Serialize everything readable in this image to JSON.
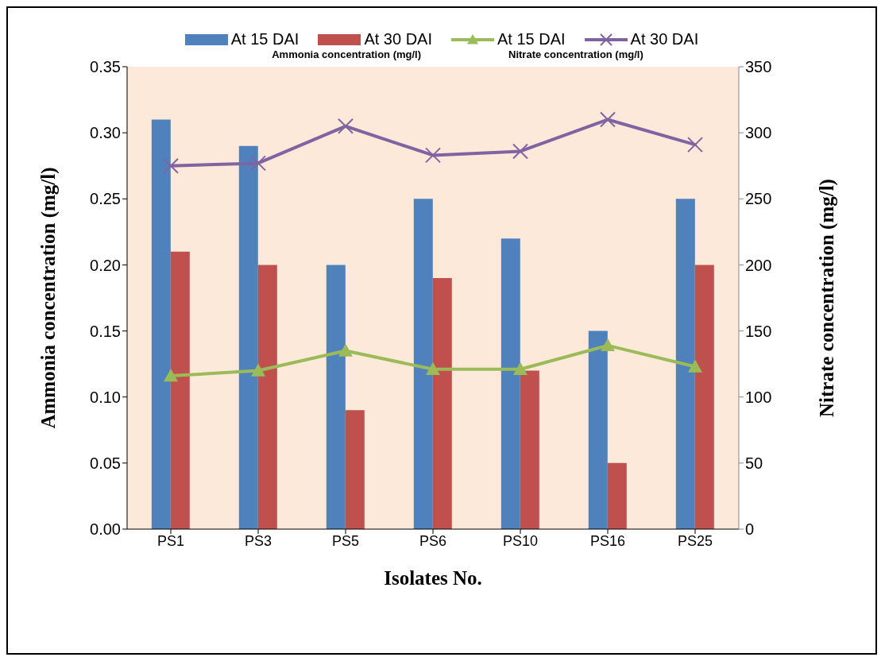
{
  "chart_data": {
    "type": "bar",
    "xlabel": "Isolates No.",
    "ylabel": "Ammonia concentration  (mg/l)",
    "y2label": "Nitrate concentration  (mg/l)",
    "categories": [
      "PS1",
      "PS3",
      "PS5",
      "PS6",
      "PS10",
      "PS16",
      "PS25"
    ],
    "series": [
      {
        "name": "At 15 DAI",
        "color": "#4f81bd",
        "values": [
          0.31,
          0.29,
          0.2,
          0.25,
          0.22,
          0.15,
          0.25
        ]
      },
      {
        "name": "At 30 DAI",
        "color": "#c0504d",
        "values": [
          0.21,
          0.2,
          0.09,
          0.19,
          0.12,
          0.05,
          0.2
        ]
      },
      {
        "name": "At 15 DAI",
        "type": "line",
        "axis": "y2",
        "marker": "triangle",
        "color": "#9bbb59",
        "values": [
          116,
          120,
          135,
          121,
          121,
          139,
          123
        ]
      },
      {
        "name": "At 30 DAI",
        "type": "line",
        "axis": "y2",
        "marker": "cross",
        "color": "#8064a2",
        "values": [
          275,
          277,
          305,
          283,
          286,
          310,
          291
        ]
      }
    ],
    "ylim": [
      0,
      0.35
    ],
    "yticks": [
      {
        "value": 0,
        "label": "0.00"
      },
      {
        "value": 0.05,
        "label": "0.05"
      },
      {
        "value": 0.1,
        "label": "0.10"
      },
      {
        "value": 0.15,
        "label": "0.15"
      },
      {
        "value": 0.2,
        "label": "0.20"
      },
      {
        "value": 0.25,
        "label": "0.25"
      },
      {
        "value": 0.3,
        "label": "0.30"
      },
      {
        "value": 0.35,
        "label": "0.35"
      }
    ],
    "y2lim": [
      0,
      350
    ],
    "y2ticks": [
      0,
      50,
      100,
      150,
      200,
      250,
      300,
      350
    ],
    "annotations": [
      "Ammonia concentration (mg/l)",
      "Nitrate concentration  (mg/l)"
    ],
    "legend": "top",
    "grid": false,
    "line_style": "solid"
  }
}
